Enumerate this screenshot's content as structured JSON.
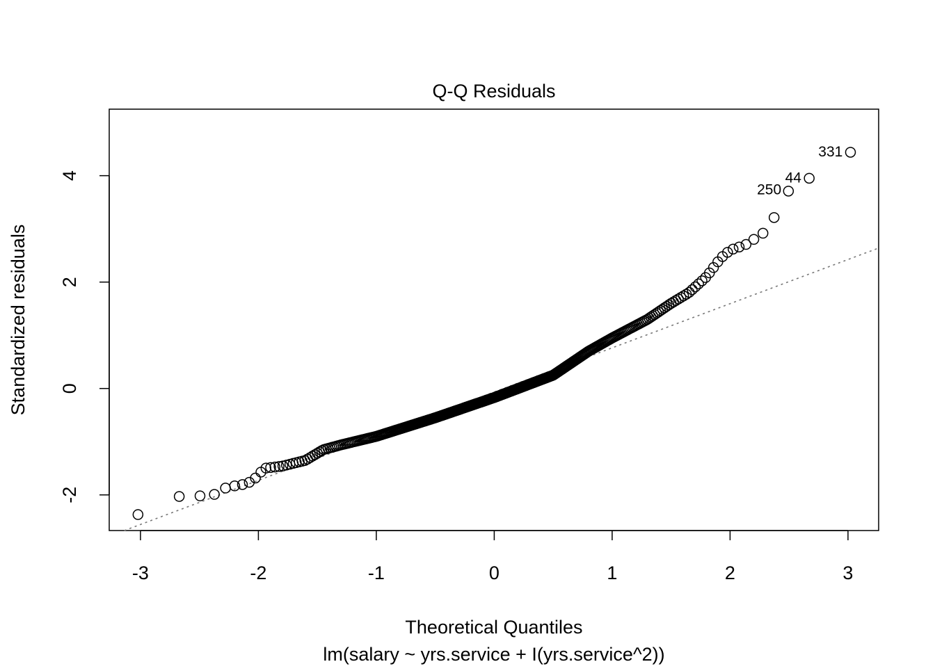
{
  "chart_data": {
    "type": "scatter",
    "title": "Q-Q Residuals",
    "xlabel": "Theoretical Quantiles",
    "subtitle": "lm(salary ~ yrs.service + I(yrs.service^2))",
    "ylabel": "Standardized residuals",
    "xlim": [
      -3.265,
      3.26
    ],
    "ylim": [
      -2.67,
      5.25
    ],
    "x_ticks": [
      -3,
      -2,
      -1,
      0,
      1,
      2,
      3
    ],
    "y_ticks": [
      -2,
      0,
      2,
      4
    ],
    "grid": false,
    "n_points": 397,
    "reference_line": {
      "intercept": -0.066,
      "slope": 0.83,
      "style": "dotted",
      "color": "#777777"
    },
    "quantile_curve": [
      [
        -3.02,
        -2.37
      ],
      [
        -2.68,
        -2.03
      ],
      [
        -2.5,
        -2.02
      ],
      [
        -2.37,
        -1.99
      ],
      [
        -2.27,
        -1.86
      ],
      [
        -2.2,
        -1.83
      ],
      [
        -2.12,
        -1.8
      ],
      [
        -2.05,
        -1.74
      ],
      [
        -1.99,
        -1.6
      ],
      [
        -1.95,
        -1.5
      ],
      [
        -1.8,
        -1.46
      ],
      [
        -1.6,
        -1.35
      ],
      [
        -1.45,
        -1.15
      ],
      [
        -1.3,
        -1.06
      ],
      [
        -1.0,
        -0.9
      ],
      [
        -0.5,
        -0.55
      ],
      [
        0,
        -0.17
      ],
      [
        0.5,
        0.25
      ],
      [
        0.8,
        0.7
      ],
      [
        1.0,
        0.95
      ],
      [
        1.3,
        1.3
      ],
      [
        1.5,
        1.6
      ],
      [
        1.65,
        1.8
      ],
      [
        1.8,
        2.1
      ],
      [
        1.92,
        2.45
      ],
      [
        2.0,
        2.6
      ],
      [
        2.13,
        2.7
      ],
      [
        2.2,
        2.8
      ],
      [
        2.28,
        2.92
      ],
      [
        2.37,
        3.2
      ],
      [
        2.5,
        3.73
      ],
      [
        2.67,
        3.95
      ],
      [
        3.02,
        4.44
      ]
    ],
    "labeled_points": [
      {
        "label": "331",
        "x": 3.02,
        "y": 4.44
      },
      {
        "label": "44",
        "x": 2.67,
        "y": 3.95
      },
      {
        "label": "250",
        "x": 2.5,
        "y": 3.73
      }
    ],
    "marker": "open-circle"
  }
}
